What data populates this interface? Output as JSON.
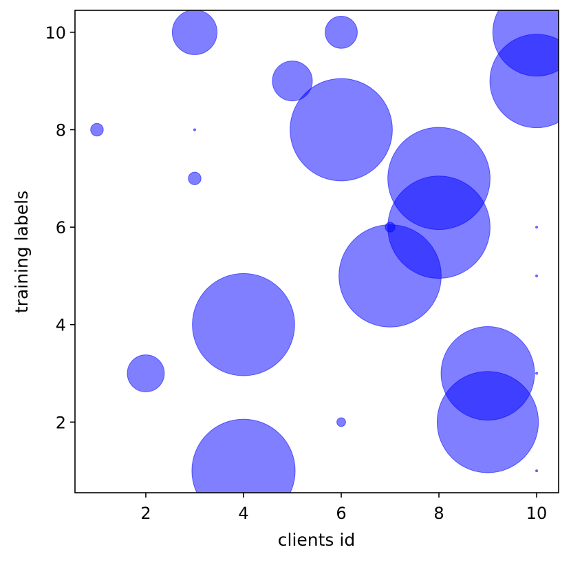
{
  "chart_data": {
    "type": "scatter",
    "title": "",
    "xlabel": "clients id",
    "ylabel": "training labels",
    "xlim": [
      0.55,
      10.45
    ],
    "ylim": [
      0.55,
      10.45
    ],
    "x_ticks": [
      {
        "value": 2,
        "label": "2"
      },
      {
        "value": 4,
        "label": "4"
      },
      {
        "value": 6,
        "label": "6"
      },
      {
        "value": 8,
        "label": "8"
      },
      {
        "value": 10,
        "label": "10"
      }
    ],
    "y_ticks": [
      {
        "value": 2,
        "label": "2"
      },
      {
        "value": 4,
        "label": "4"
      },
      {
        "value": 6,
        "label": "6"
      },
      {
        "value": 8,
        "label": "8"
      },
      {
        "value": 10,
        "label": "10"
      }
    ],
    "grid": false,
    "legend": "none",
    "marker_color": "#0000ff",
    "marker_opacity": 0.5,
    "size_encoding": "bubble radius in y-axis units",
    "points": [
      {
        "x": 1,
        "y": 8,
        "r": 0.13
      },
      {
        "x": 2,
        "y": 3,
        "r": 0.38
      },
      {
        "x": 3,
        "y": 10,
        "r": 0.46
      },
      {
        "x": 3,
        "y": 8,
        "r": 0.02
      },
      {
        "x": 3,
        "y": 7,
        "r": 0.13
      },
      {
        "x": 4,
        "y": 4,
        "r": 1.05
      },
      {
        "x": 4,
        "y": 1,
        "r": 1.06
      },
      {
        "x": 5,
        "y": 9,
        "r": 0.41
      },
      {
        "x": 6,
        "y": 10,
        "r": 0.33
      },
      {
        "x": 6,
        "y": 8,
        "r": 1.05
      },
      {
        "x": 6,
        "y": 2,
        "r": 0.09
      },
      {
        "x": 7,
        "y": 6,
        "r": 0.1
      },
      {
        "x": 7,
        "y": 5,
        "r": 1.05
      },
      {
        "x": 8,
        "y": 7,
        "r": 1.05
      },
      {
        "x": 8,
        "y": 6,
        "r": 1.05
      },
      {
        "x": 9,
        "y": 3,
        "r": 0.96
      },
      {
        "x": 9,
        "y": 2,
        "r": 1.04
      },
      {
        "x": 10,
        "y": 10,
        "r": 0.9
      },
      {
        "x": 10,
        "y": 9,
        "r": 0.96
      },
      {
        "x": 10,
        "y": 6,
        "r": 0.02
      },
      {
        "x": 10,
        "y": 5,
        "r": 0.02
      },
      {
        "x": 10,
        "y": 3,
        "r": 0.02
      },
      {
        "x": 10,
        "y": 1,
        "r": 0.02
      }
    ]
  }
}
